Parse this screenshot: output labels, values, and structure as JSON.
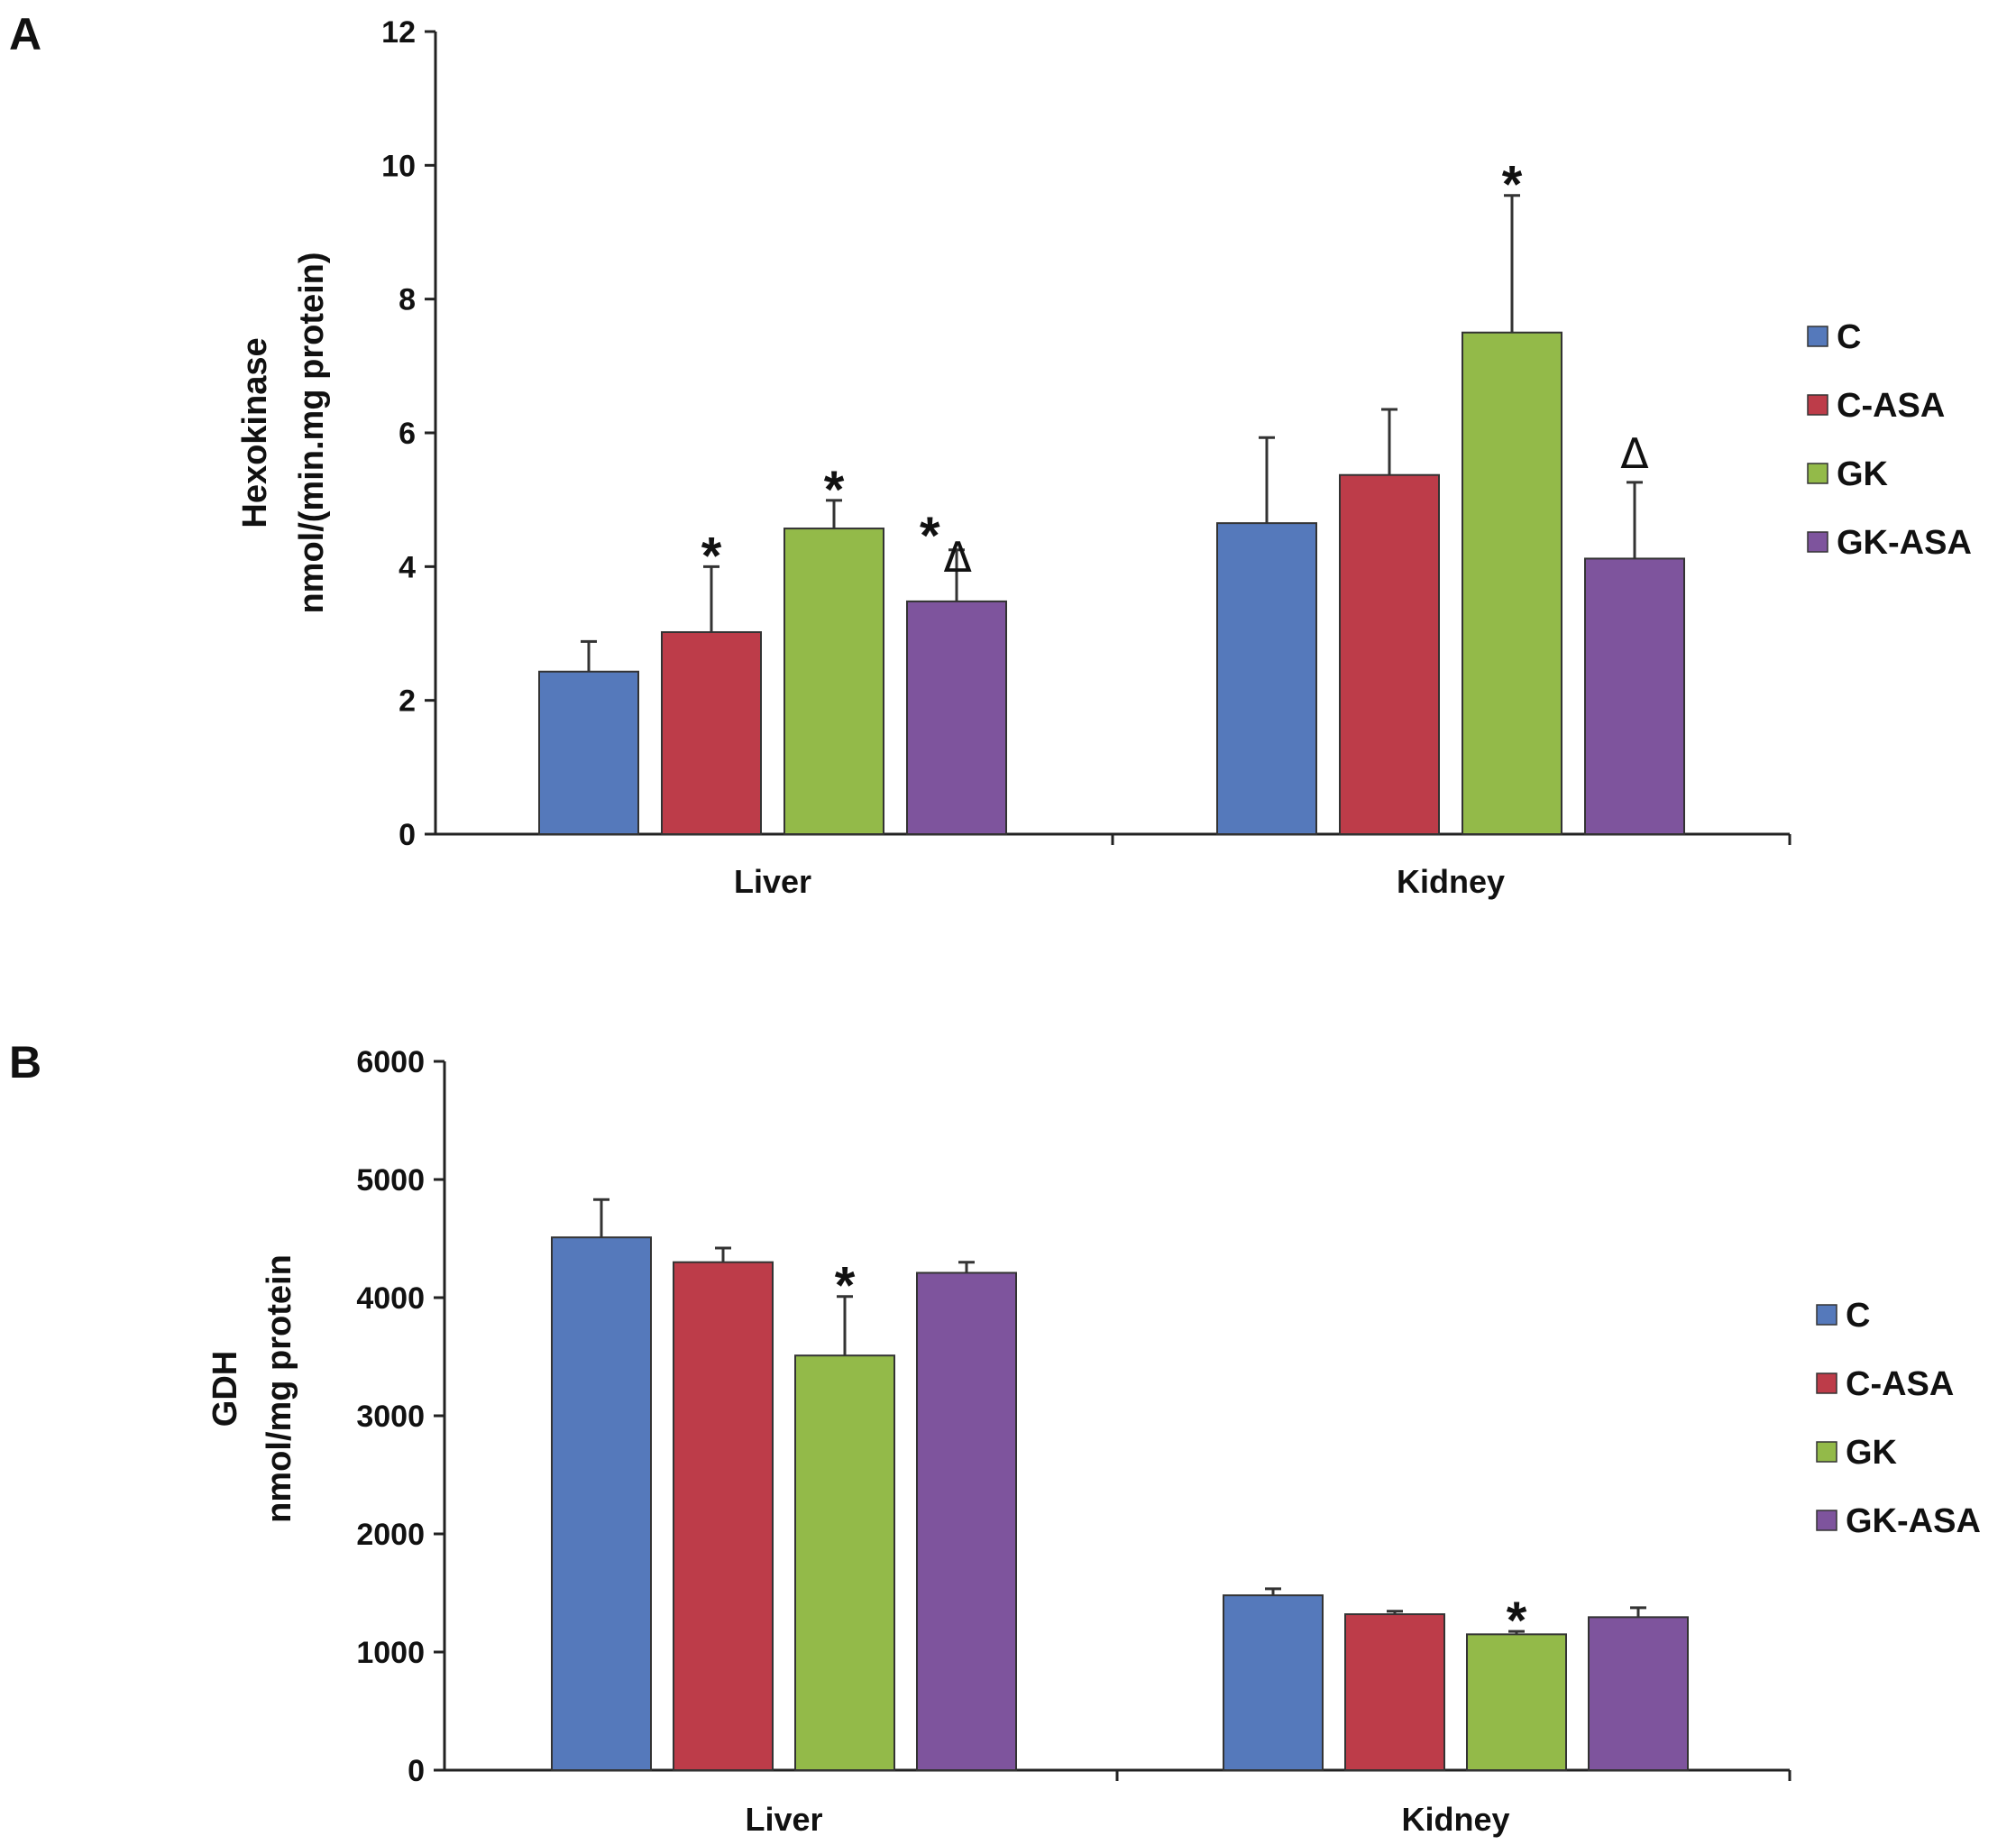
{
  "colors": {
    "C": "#5579bb",
    "C-ASA": "#bd3c49",
    "GK": "#93ba49",
    "GK-ASA": "#7e549d",
    "axis": "#222222"
  },
  "chart_data": [
    {
      "panel": "A",
      "type": "bar",
      "ylabel_line1": "Hexokinase",
      "ylabel_line2": "nmol/(min.mg protein)",
      "ylim": [
        0,
        12
      ],
      "yticks": [
        "0",
        "2",
        "4",
        "6",
        "8",
        "10",
        "12"
      ],
      "categories": [
        "Liver",
        "Kidney"
      ],
      "series": [
        {
          "name": "C",
          "values": [
            2.43,
            4.65
          ],
          "errors": [
            0.45,
            1.28
          ],
          "marks": [
            "",
            ""
          ]
        },
        {
          "name": "C-ASA",
          "values": [
            3.02,
            5.37
          ],
          "errors": [
            0.98,
            0.98
          ],
          "marks": [
            "*",
            ""
          ]
        },
        {
          "name": "GK",
          "values": [
            4.57,
            7.5
          ],
          "errors": [
            0.42,
            2.05
          ],
          "marks": [
            "*",
            "*"
          ]
        },
        {
          "name": "GK-ASA",
          "values": [
            3.48,
            4.12
          ],
          "errors": [
            0.77,
            1.14
          ],
          "marks": [
            "*Δ",
            "Δ"
          ]
        }
      ],
      "legend": [
        "C",
        "C-ASA",
        "GK",
        "GK-ASA"
      ]
    },
    {
      "panel": "B",
      "type": "bar",
      "ylabel_line1": "GDH",
      "ylabel_line2": "nmol/mg protein",
      "ylim": [
        0,
        6000
      ],
      "yticks": [
        "0",
        "1000",
        "2000",
        "3000",
        "4000",
        "5000",
        "6000"
      ],
      "categories": [
        "Liver",
        "Kidney"
      ],
      "series": [
        {
          "name": "C",
          "values": [
            4510,
            1480
          ],
          "errors": [
            320,
            55
          ],
          "marks": [
            "",
            ""
          ]
        },
        {
          "name": "C-ASA",
          "values": [
            4300,
            1320
          ],
          "errors": [
            120,
            25
          ],
          "marks": [
            "",
            ""
          ]
        },
        {
          "name": "GK",
          "values": [
            3510,
            1150
          ],
          "errors": [
            500,
            25
          ],
          "marks": [
            "*",
            "*"
          ]
        },
        {
          "name": "GK-ASA",
          "values": [
            4210,
            1295
          ],
          "errors": [
            90,
            80
          ],
          "marks": [
            "",
            ""
          ]
        }
      ],
      "legend": [
        "C",
        "C-ASA",
        "GK",
        "GK-ASA"
      ]
    }
  ]
}
